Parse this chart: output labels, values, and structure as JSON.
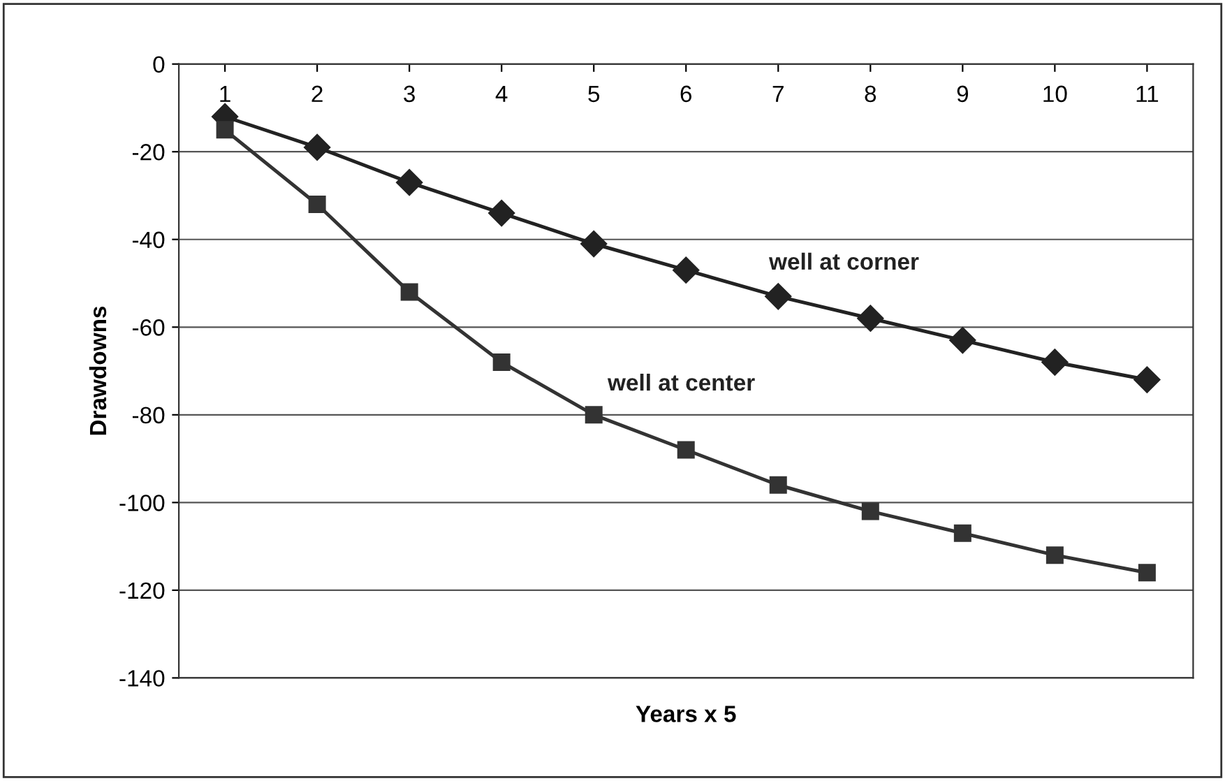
{
  "chart_data": {
    "type": "line",
    "xlabel": "Years x 5",
    "ylabel": "Drawdowns",
    "categories": [
      "1",
      "2",
      "3",
      "4",
      "5",
      "6",
      "7",
      "8",
      "9",
      "10",
      "11"
    ],
    "series": [
      {
        "name": "well at corner",
        "color": "#222222",
        "marker": "diamond",
        "values": [
          -12,
          -19,
          -27,
          -34,
          -41,
          -47,
          -53,
          -58,
          -63,
          -68,
          -72
        ]
      },
      {
        "name": "well at center",
        "color": "#333333",
        "marker": "square",
        "values": [
          -15,
          -32,
          -52,
          -68,
          -80,
          -88,
          -96,
          -102,
          -107,
          -112,
          -116
        ]
      }
    ],
    "ylim": [
      -140,
      0
    ],
    "yticks": [
      -140,
      -120,
      -100,
      -80,
      -60,
      -40,
      -20,
      0
    ],
    "grid": "y",
    "legend": false,
    "line_style": "solid"
  }
}
